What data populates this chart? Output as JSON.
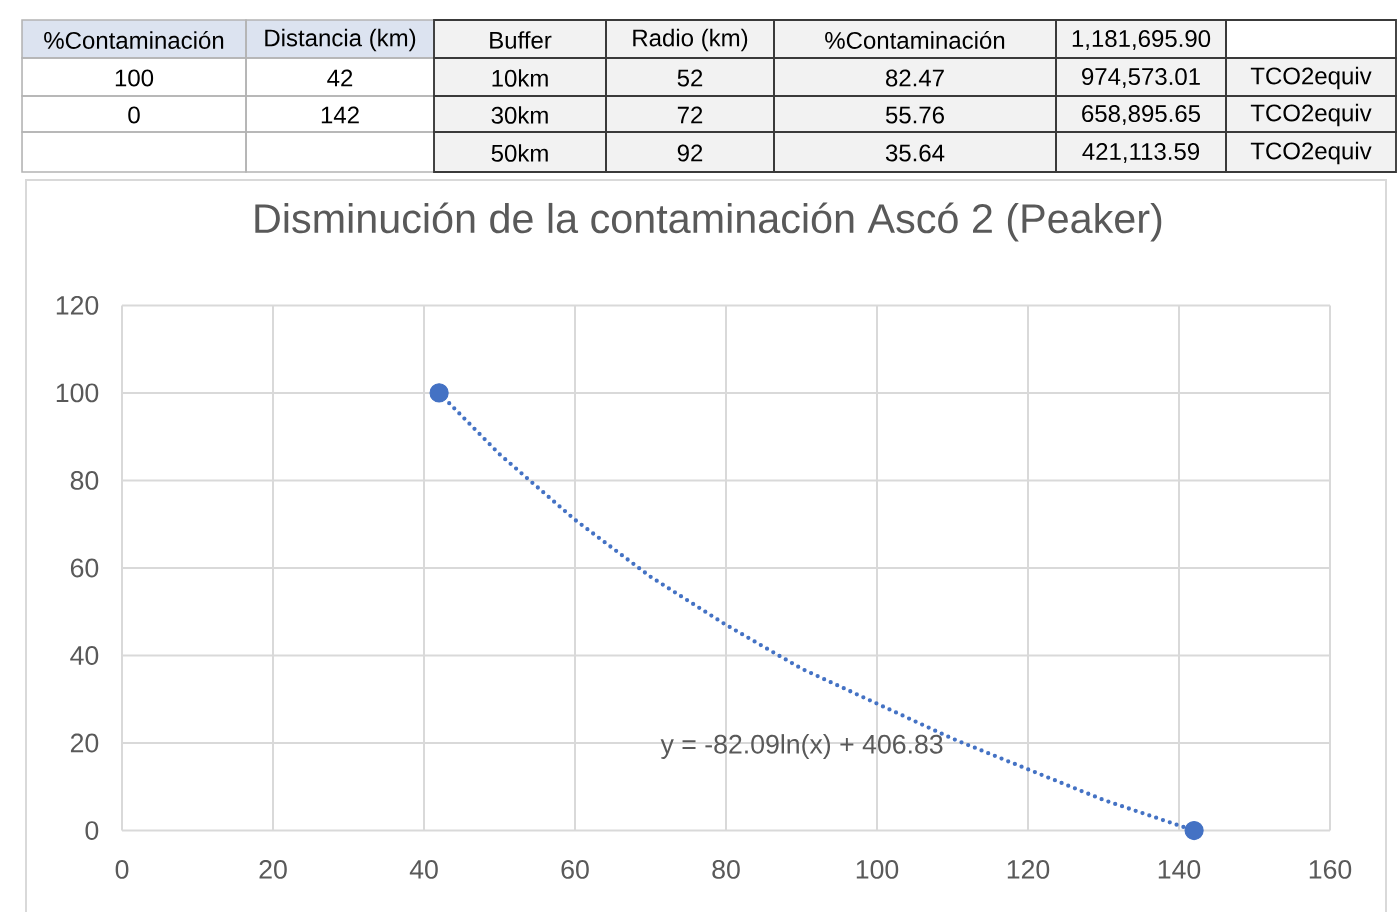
{
  "chart_data": [
    {
      "type": "other",
      "annotations": [
        "%Contaminación",
        "Distancia (km)",
        "Buffer",
        "Radio (km)",
        "%Contaminación",
        "1,181,695.90",
        "100",
        "42",
        "10km",
        "52",
        "82.47",
        "974,573.01",
        "TCO2equiv",
        "0",
        "142",
        "30km",
        "72",
        "55.76",
        "658,895.65",
        "TCO2equiv",
        "50km",
        "92",
        "35.64",
        "421,113.59",
        "TCO2equiv"
      ]
    },
    {
      "type": "scatter",
      "title": "Disminución de la contaminación Ascó 2 (Peaker)",
      "xlim": [
        0,
        160
      ],
      "xticks": [
        0,
        20,
        40,
        60,
        80,
        100,
        120,
        140,
        160
      ],
      "ylim": [
        0,
        120
      ],
      "yticks": [
        0,
        20,
        40,
        60,
        80,
        100,
        120
      ],
      "grid": true,
      "marker": "circle",
      "series": [
        {
          "x": [
            42,
            142
          ],
          "values": [
            100,
            0
          ],
          "color": "#4472c4"
        },
        {
          "type": "line",
          "x": [
            42,
            50,
            60,
            70,
            80,
            90,
            100,
            110,
            120,
            130,
            142
          ],
          "values": [
            100,
            86,
            71,
            58,
            47,
            37,
            29,
            21,
            14,
            7,
            0
          ],
          "color": "#4472c4",
          "marker": "none",
          "line_style": "dotted"
        }
      ],
      "annotations": [
        "y = -82.09ln(x) + 406.83"
      ]
    }
  ]
}
